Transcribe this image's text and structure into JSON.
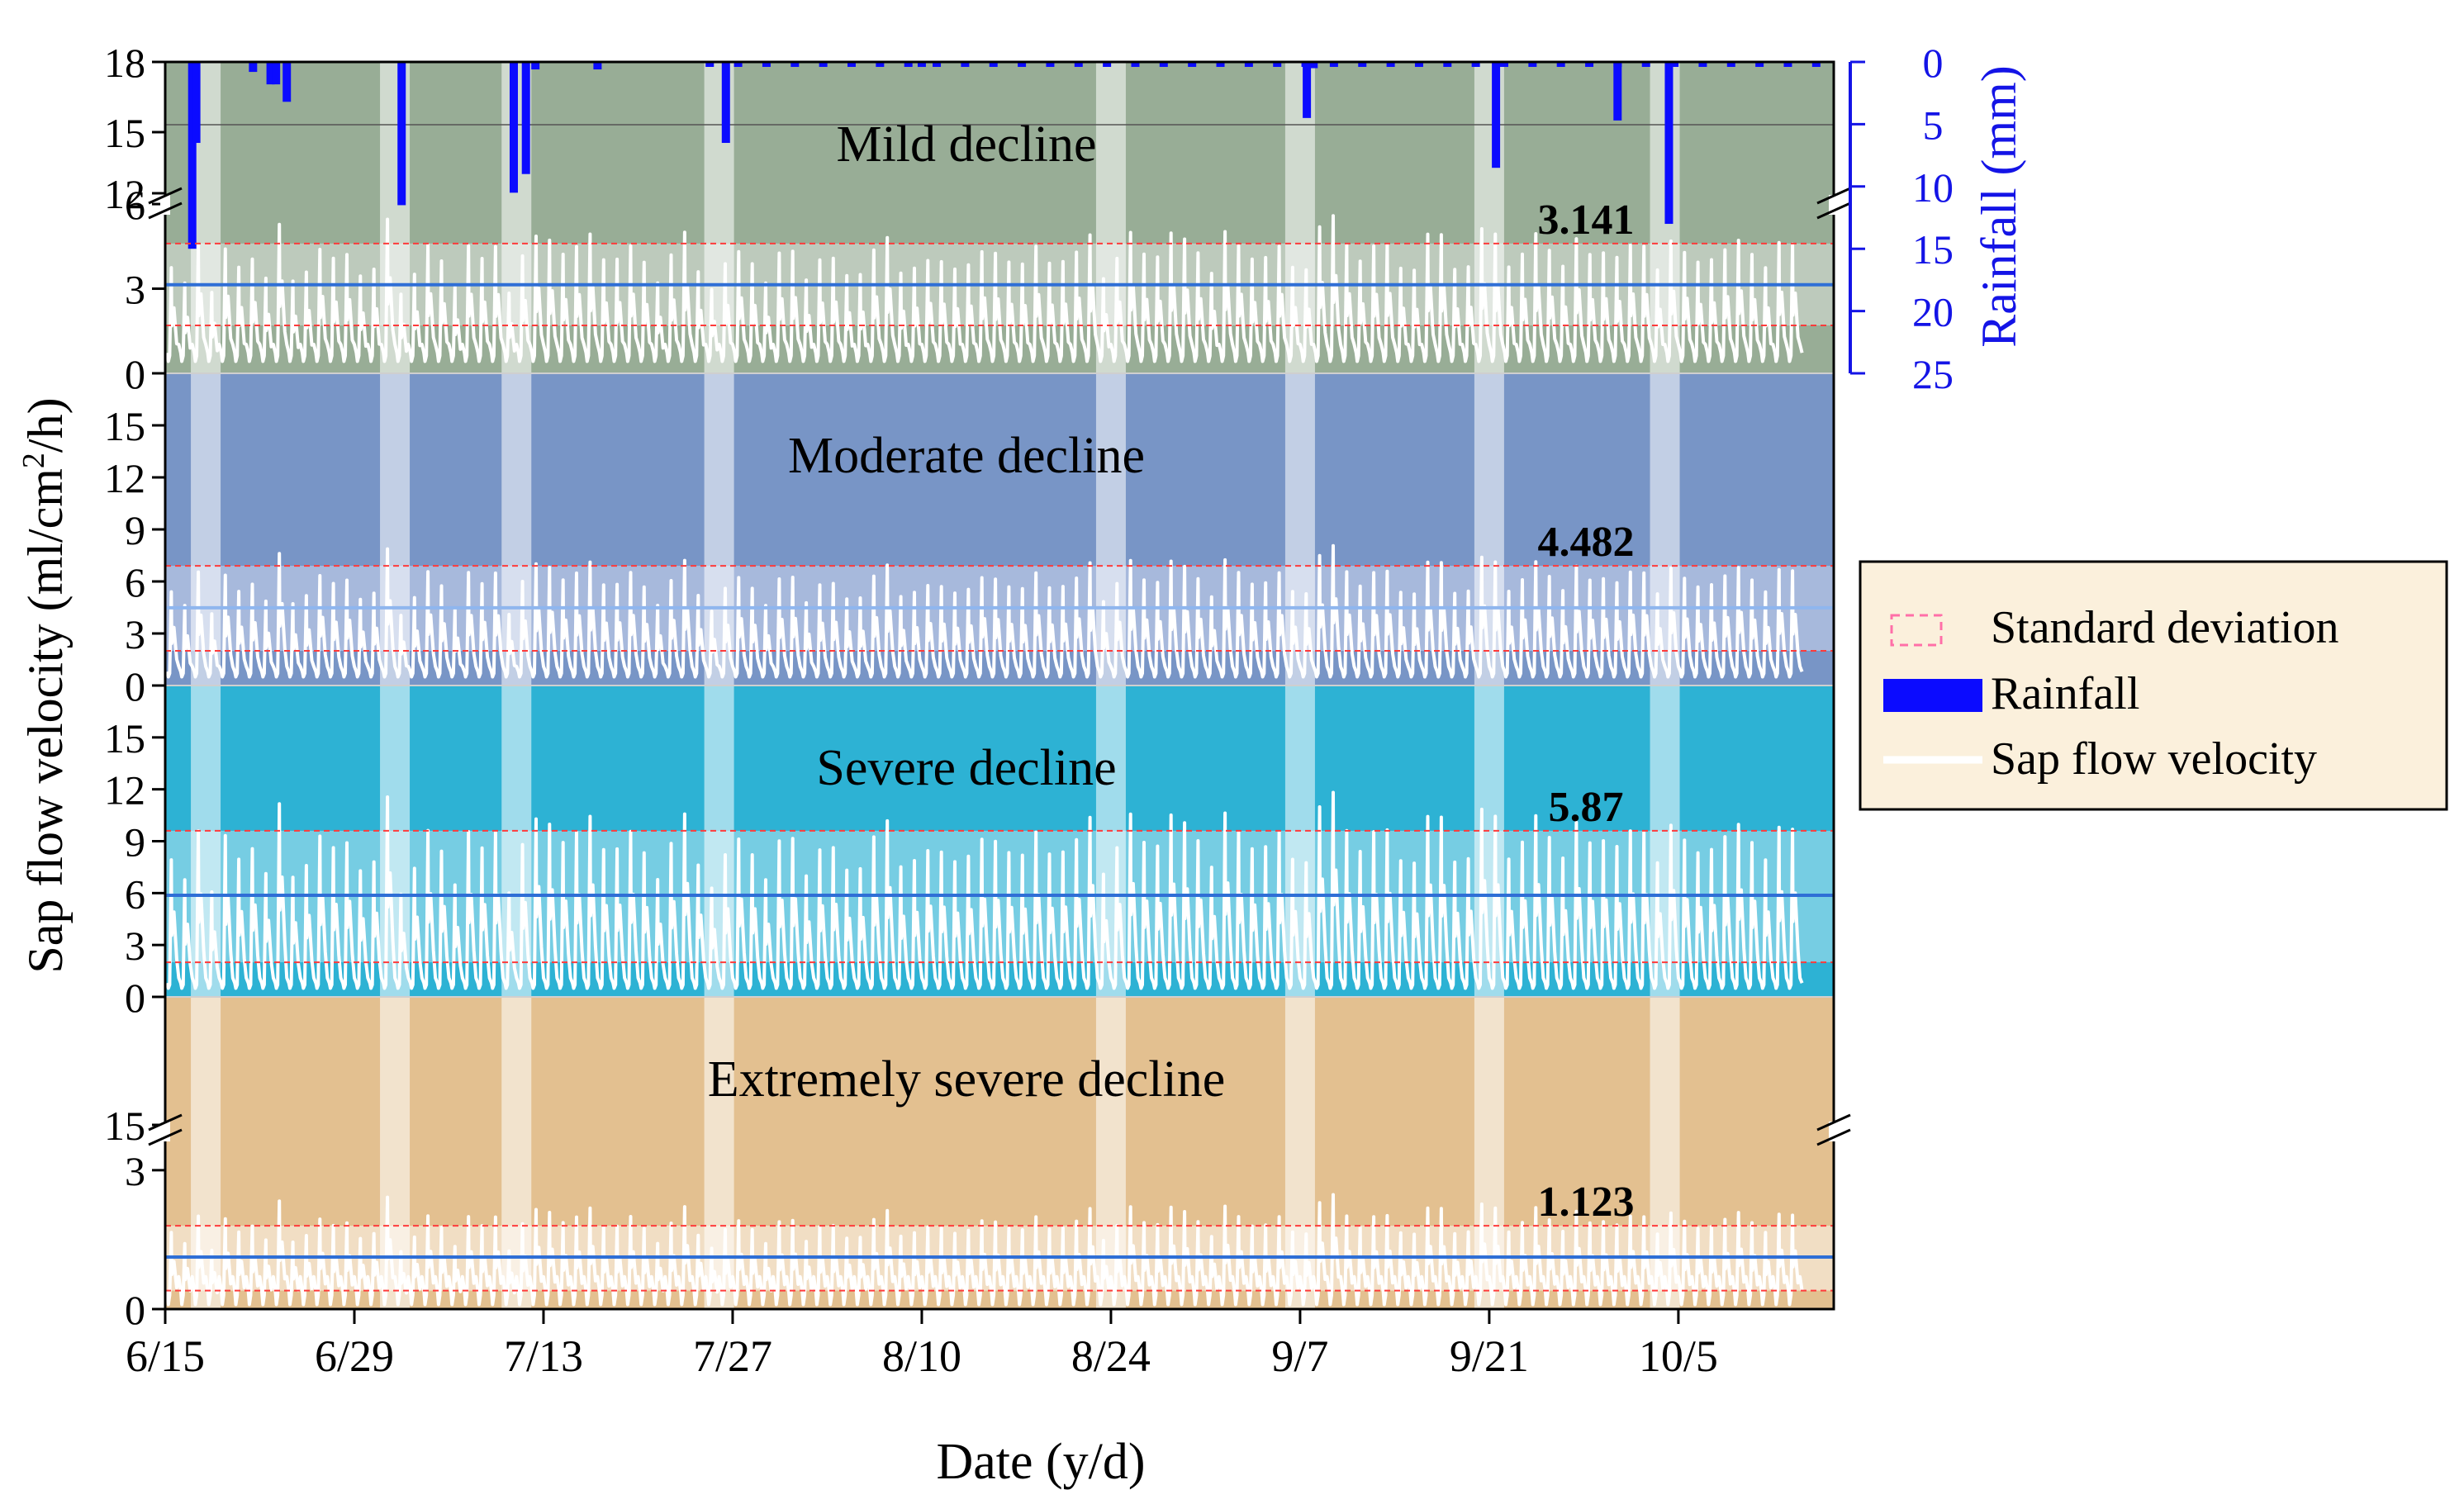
{
  "chart_data": {
    "type": "line",
    "x_axis": {
      "label": "Date (y/d)",
      "ticks": [
        "6/15",
        "6/29",
        "7/13",
        "7/27",
        "8/10",
        "8/24",
        "9/7",
        "9/21",
        "10/5"
      ],
      "range_days": [
        0,
        121
      ]
    },
    "y_axis_left_label": "Sap flow velocity (ml/cm",
    "y_axis_left_label_sup": "2",
    "y_axis_left_label_end": "/h)",
    "y_axis_right": {
      "label": "Rainfall (mm)",
      "ticks": [
        "0",
        "5",
        "10",
        "15",
        "20",
        "25"
      ],
      "range": [
        0,
        25
      ]
    },
    "legend": {
      "position": "right",
      "entries": [
        {
          "label": "Standard deviation",
          "style": "dashed-box"
        },
        {
          "label": "Rainfall",
          "style": "bar"
        },
        {
          "label": "Sap flow velocity",
          "style": "line"
        }
      ]
    },
    "rain_highlight_days": [
      3,
      17,
      26,
      41,
      70,
      84,
      98,
      111
    ],
    "panels": [
      {
        "name": "Mild decline",
        "mean": 3.141,
        "mean_label": "3.141",
        "sd_band": [
          1.7,
          4.6
        ],
        "peak_max": 5.2,
        "ticks_low": [
          "0",
          "3",
          "6"
        ],
        "ticks_high": [
          "12",
          "15",
          "18"
        ],
        "color_bg": "#98ad96",
        "color_band": "#c9d4c8",
        "color_mean": "#2f6fd6"
      },
      {
        "name": "Moderate decline",
        "mean": 4.482,
        "mean_label": "4.482",
        "sd_band": [
          2.0,
          6.9
        ],
        "peak_max": 7.5,
        "ticks": [
          "0",
          "3",
          "6",
          "9",
          "12",
          "15"
        ],
        "color_bg": "#7895c6",
        "color_band": "#b7c6e3",
        "color_mean": "#8fb6ee"
      },
      {
        "name": "Severe decline",
        "mean": 5.87,
        "mean_label": "5.87",
        "sd_band": [
          2.0,
          9.6
        ],
        "peak_max": 11.0,
        "ticks": [
          "0",
          "3",
          "6",
          "9",
          "12",
          "15"
        ],
        "color_bg": "#2db2d4",
        "color_band": "#8fd6e8",
        "color_mean": "#2f6fd6"
      },
      {
        "name": "Extremely severe decline",
        "mean": 1.123,
        "mean_label": "1.123",
        "sd_band": [
          0.4,
          1.8
        ],
        "peak_max": 2.3,
        "ticks_low": [
          "0",
          "3"
        ],
        "ticks_high": [
          "15"
        ],
        "color_bg": "#e3c090",
        "color_band": "#f5e8d5",
        "color_mean": "#2f6fd6"
      }
    ],
    "rainfall_events": [
      {
        "day": 2.0,
        "mm": 15.0
      },
      {
        "day": 2.3,
        "mm": 6.5
      },
      {
        "day": 6.5,
        "mm": 0.8
      },
      {
        "day": 7.8,
        "mm": 1.8
      },
      {
        "day": 8.2,
        "mm": 1.8
      },
      {
        "day": 9.0,
        "mm": 3.2
      },
      {
        "day": 17.5,
        "mm": 11.5
      },
      {
        "day": 25.8,
        "mm": 10.5
      },
      {
        "day": 26.7,
        "mm": 9.0
      },
      {
        "day": 27.4,
        "mm": 0.6
      },
      {
        "day": 32.0,
        "mm": 0.6
      },
      {
        "day": 41.5,
        "mm": 6.5
      },
      {
        "day": 56.0,
        "mm": 0.4
      },
      {
        "day": 84.5,
        "mm": 4.5
      },
      {
        "day": 85.0,
        "mm": 0.5
      },
      {
        "day": 98.5,
        "mm": 8.5
      },
      {
        "day": 107.5,
        "mm": 4.7
      },
      {
        "day": 111.3,
        "mm": 13.0
      }
    ],
    "sap_flow": {
      "description": "hourly diurnal sap flow velocity, 121 days",
      "daily_peaks_relative": [
        0.72,
        0.55,
        0.9,
        0.62,
        0.8,
        0.66,
        0.85,
        0.7,
        0.92,
        0.6,
        0.78,
        0.86,
        0.7,
        0.82,
        0.75,
        0.68,
        0.95,
        0.58,
        0.74,
        0.8,
        0.72,
        0.66,
        0.9,
        0.7,
        0.86,
        0.62,
        0.78,
        0.84,
        0.96,
        0.9,
        0.8,
        0.88,
        0.86,
        0.82,
        0.78,
        0.74,
        0.7,
        0.8,
        0.86,
        0.72,
        0.64,
        0.7,
        0.76,
        0.82,
        0.66,
        0.74,
        0.8,
        0.72,
        0.78,
        0.7,
        0.68,
        0.76,
        0.8,
        0.84,
        0.74,
        0.78,
        0.7,
        0.72,
        0.8,
        0.76,
        0.74,
        0.82,
        0.86,
        0.72,
        0.78,
        0.8,
        0.84,
        0.76,
        0.88,
        0.72,
        0.82,
        0.86,
        0.8,
        0.9,
        0.94,
        0.82,
        0.86,
        0.76,
        0.9,
        0.8,
        0.86,
        0.84,
        0.78,
        0.7,
        0.8,
        1.0,
        0.96,
        0.9,
        0.86,
        0.82,
        0.8,
        0.78,
        0.76,
        0.86,
        0.9,
        0.8,
        0.74,
        0.88,
        0.96,
        0.82,
        0.78,
        0.86,
        0.9,
        0.8,
        0.84,
        0.76,
        0.92,
        0.82,
        0.78,
        0.86,
        0.8,
        0.88,
        0.74,
        0.8,
        0.86,
        0.78,
        0.84,
        0.9,
        0.76,
        0.8,
        0.86
      ]
    }
  }
}
